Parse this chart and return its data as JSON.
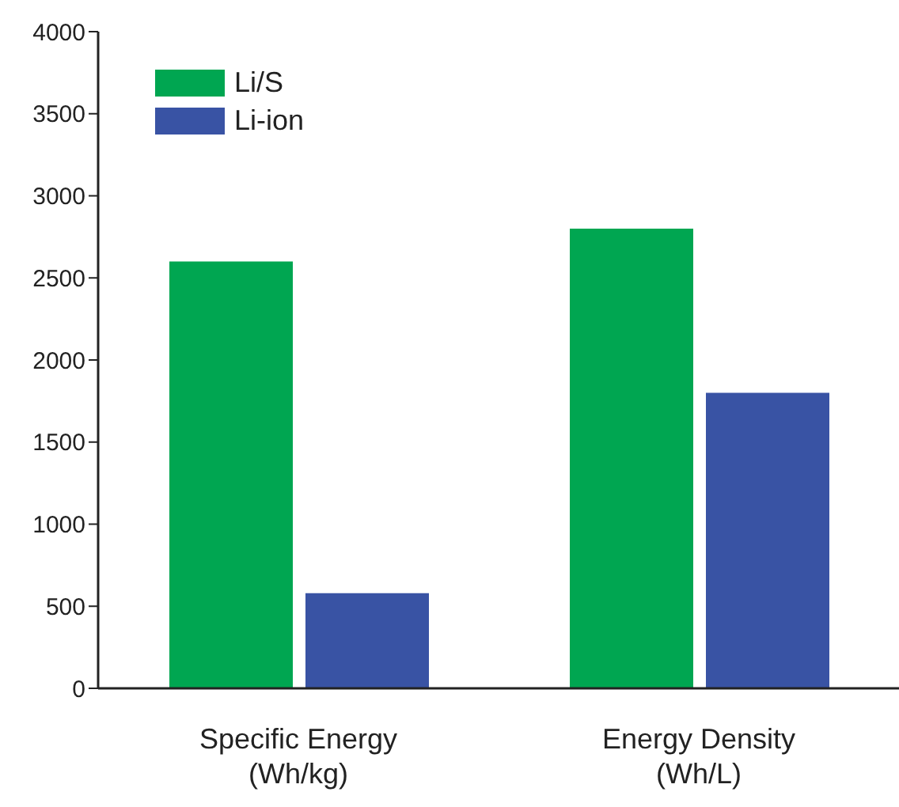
{
  "chart_data": {
    "type": "bar",
    "categories": [
      "Specific Energy\n(Wh/kg)",
      "Energy Density\n(Wh/L)"
    ],
    "series": [
      {
        "name": "Li/S",
        "color": "#00a651",
        "values": [
          2600,
          2800
        ]
      },
      {
        "name": "Li-ion",
        "color": "#3953a4",
        "values": [
          580,
          1800
        ]
      }
    ],
    "ylim": [
      0,
      4000
    ],
    "yticks": [
      0,
      500,
      1000,
      1500,
      2000,
      2500,
      3000,
      3500,
      4000
    ],
    "grid": false,
    "legend": "top left"
  }
}
